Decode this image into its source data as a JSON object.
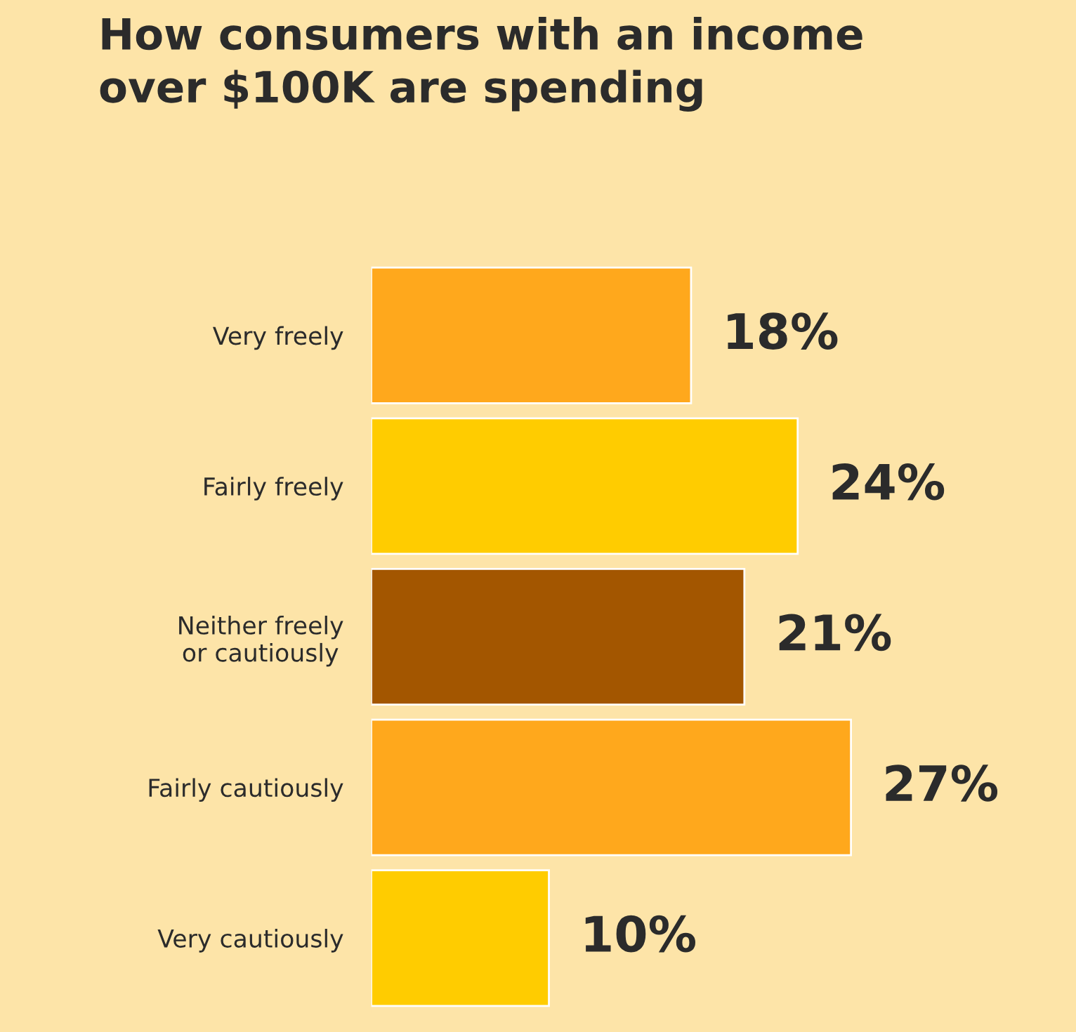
{
  "chart_data": {
    "type": "bar",
    "orientation": "horizontal",
    "title": "How consumers with an income\nover $100K are spending",
    "categories": [
      "Very freely",
      "Fairly freely",
      "Neither freely\nor cautiously",
      "Fairly cautiously",
      "Very cautiously"
    ],
    "values": [
      18,
      24,
      21,
      27,
      10
    ],
    "colors": [
      "#ffa81c",
      "#ffcc00",
      "#a35600",
      "#ffa81c",
      "#ffcc00"
    ],
    "value_labels": [
      "18%",
      "24%",
      "21%",
      "27%",
      "10%"
    ],
    "grid": false,
    "legend": false
  }
}
